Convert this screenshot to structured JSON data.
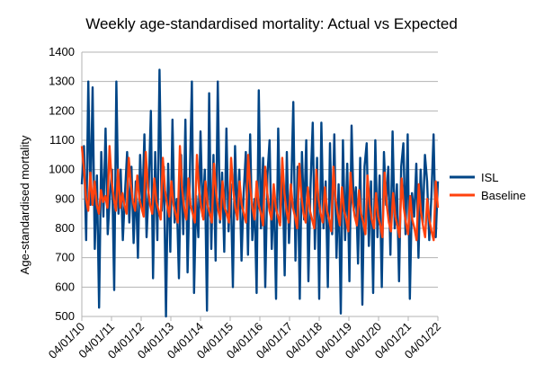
{
  "chart_data": {
    "type": "line",
    "title": "Weekly age-standardised mortality: Actual vs Expected",
    "xlabel": "",
    "ylabel": "Age-standardised mortality",
    "ylim": [
      500,
      1400
    ],
    "yticks": [
      500,
      600,
      700,
      800,
      900,
      1000,
      1100,
      1200,
      1300,
      1400
    ],
    "x_tick_labels": [
      "04/01/10",
      "04/01/11",
      "04/01/12",
      "04/01/13",
      "04/01/14",
      "04/01/15",
      "04/01/16",
      "04/01/17",
      "04/01/18",
      "04/01/19",
      "04/01/20",
      "04/01/21",
      "04/01/22"
    ],
    "grid": "horizontal",
    "legend_position": "right",
    "series": [
      {
        "name": "ISL",
        "color": "#004586",
        "values": [
          950,
          1080,
          760,
          1300,
          880,
          1280,
          730,
          980,
          530,
          1060,
          840,
          1140,
          780,
          910,
          1000,
          590,
          1300,
          850,
          1000,
          760,
          920,
          1060,
          820,
          1010,
          750,
          960,
          700,
          1050,
          860,
          1120,
          770,
          940,
          1200,
          630,
          1060,
          760,
          1340,
          860,
          1010,
          500,
          1020,
          720,
          1170,
          820,
          900,
          630,
          1050,
          780,
          1170,
          650,
          960,
          1300,
          580,
          910,
          770,
          1130,
          840,
          1000,
          520,
          1260,
          730,
          1050,
          690,
          1300,
          820,
          990,
          720,
          1140,
          790,
          950,
          600,
          1080,
          830,
          1000,
          690,
          920,
          1060,
          710,
          1120,
          760,
          900,
          580,
          1270,
          800,
          1040,
          600,
          980,
          1100,
          730,
          930,
          560,
          1140,
          820,
          1000,
          640,
          1060,
          750,
          920,
          1230,
          690,
          1010,
          560,
          1060,
          830,
          1100,
          620,
          950,
          1160,
          730,
          1040,
          560,
          1160,
          800,
          960,
          600,
          1090,
          780,
          1120,
          700,
          950,
          510,
          1100,
          760,
          1020,
          620,
          1150,
          860,
          940,
          680,
          1040,
          540,
          1010,
          1090,
          740,
          960,
          580,
          1100,
          770,
          980,
          600,
          1060,
          880,
          1010,
          710,
          1130,
          800,
          950,
          620,
          1010,
          1090,
          780,
          1120,
          560,
          920,
          840,
          1020,
          700,
          1000,
          820,
          1050,
          960,
          760,
          910,
          1120,
          770,
          960
        ]
      },
      {
        "name": "Baseline",
        "color": "#ff420e",
        "values": [
          1080,
          1000,
          900,
          860,
          990,
          880,
          960,
          880,
          850,
          930,
          890,
          910,
          870,
          1080,
          960,
          900,
          860,
          1000,
          870,
          920,
          880,
          850,
          1040,
          950,
          890,
          860,
          980,
          900,
          870,
          840,
          1060,
          940,
          880,
          850,
          970,
          890,
          860,
          830,
          1040,
          930,
          880,
          840,
          960,
          880,
          850,
          820,
          1080,
          940,
          870,
          830,
          970,
          880,
          850,
          820,
          1050,
          930,
          870,
          830,
          960,
          880,
          850,
          820,
          1020,
          920,
          860,
          830,
          960,
          870,
          850,
          820,
          1040,
          930,
          870,
          830,
          960,
          880,
          850,
          820,
          1050,
          940,
          870,
          830,
          960,
          880,
          850,
          810,
          1010,
          920,
          860,
          830,
          950,
          870,
          840,
          810,
          1040,
          920,
          860,
          820,
          950,
          870,
          840,
          800,
          1020,
          910,
          850,
          820,
          940,
          860,
          830,
          800,
          1000,
          900,
          850,
          820,
          940,
          860,
          830,
          790,
          1010,
          900,
          850,
          810,
          940,
          860,
          830,
          790,
          990,
          890,
          840,
          810,
          930,
          850,
          820,
          780,
          980,
          880,
          830,
          800,
          920,
          840,
          810,
          770,
          990,
          880,
          820,
          790,
          920,
          840,
          810,
          770,
          970,
          870,
          820,
          780,
          910,
          830,
          800,
          760,
          950,
          860,
          810,
          770,
          900,
          830,
          790,
          760,
          960,
          870
        ]
      }
    ]
  }
}
